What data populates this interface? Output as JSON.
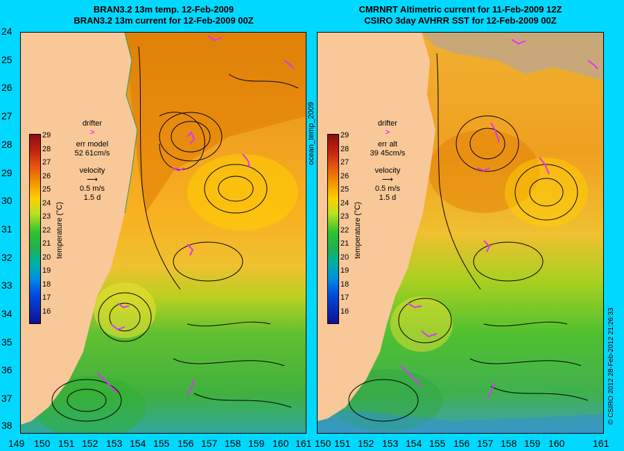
{
  "left_panel": {
    "title_line1": "BRAN3.2 13m temp. 12-Feb-2009",
    "title_line2": "BRAN3.2 13m current for 12-Feb-2009 00Z",
    "drifter_label": "drifter",
    "drifter_marker": ">",
    "err_label": "err model",
    "err_value": "52 61cm/s",
    "velocity_label": "velocity",
    "velocity_arrow": "⟶",
    "velocity_scale": "0.5 m/s",
    "velocity_time": "1.5 d"
  },
  "right_panel": {
    "title_line1": "CMRNRT Altimetric current for 11-Feb-2009 12Z",
    "title_line2": "CSIRO 3day AVHRR SST for 12-Feb-2009 00Z",
    "drifter_label": "drifter",
    "drifter_marker": ">",
    "err_label": "err alt",
    "err_value": "39 45cm/s",
    "velocity_label": "velocity",
    "velocity_arrow": "⟶",
    "velocity_scale": "0.5 m/s",
    "velocity_time": "1.5 d"
  },
  "colorbar": {
    "label": "temperature (°C)",
    "ticks": [
      "29",
      "28",
      "27",
      "26",
      "25",
      "24",
      "23",
      "22",
      "21",
      "20",
      "19",
      "18",
      "17",
      "16"
    ]
  },
  "latitude_ticks": [
    "24",
    "25",
    "26",
    "27",
    "28",
    "29",
    "30",
    "31",
    "32",
    "33",
    "34",
    "35",
    "36",
    "37",
    "38"
  ],
  "longitude_ticks": [
    "149",
    "150",
    "151",
    "152",
    "153",
    "154",
    "155",
    "156",
    "157",
    "158",
    "159",
    "160",
    "161"
  ],
  "side_label": "ocean_temp_2009",
  "copyright": "© CSIRO 2012   28-Feb-2012 21:26:33",
  "colors": {
    "background": "#00d8ff",
    "land": "#f8c898",
    "drifter": "#e030ff",
    "warm": "#e88000",
    "mid": "#ffd000",
    "cool": "#30c000",
    "cold": "#00a0a0"
  }
}
